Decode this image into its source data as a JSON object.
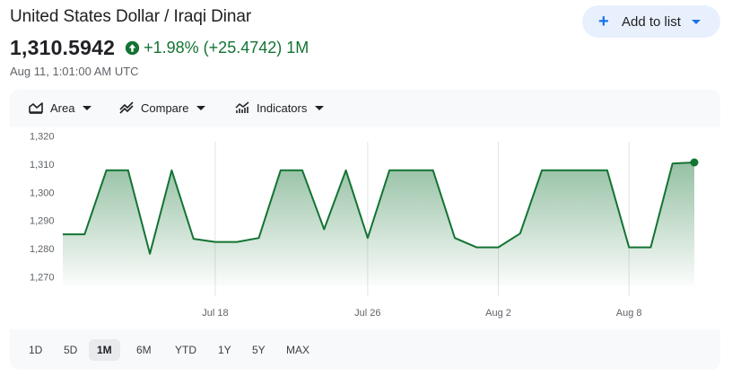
{
  "header": {
    "title": "United States Dollar / Iraqi Dinar",
    "add_button_label": "Add to list"
  },
  "quote": {
    "price": "1,310.5942",
    "change": "+1.98% (+25.4742)",
    "period": "1M",
    "timestamp": "Aug 11, 1:01:00 AM UTC",
    "change_color": "#137333"
  },
  "toolbar": {
    "area_label": "Area",
    "compare_label": "Compare",
    "indicators_label": "Indicators"
  },
  "ranges": [
    "1D",
    "5D",
    "1M",
    "6M",
    "YTD",
    "1Y",
    "5Y",
    "MAX"
  ],
  "active_range": "1M",
  "chart_data": {
    "type": "area",
    "color": "#137333",
    "ylim": [
      1267,
      1323
    ],
    "yticks": [
      1270,
      1280,
      1290,
      1300,
      1310,
      1320
    ],
    "ytick_labels": [
      "1,270",
      "1,280",
      "1,290",
      "1,300",
      "1,310",
      "1,320"
    ],
    "xticks": [
      {
        "label": "Jul 18",
        "index": 7
      },
      {
        "label": "Jul 26",
        "index": 14
      },
      {
        "label": "Aug 2",
        "index": 20
      },
      {
        "label": "Aug 8",
        "index": 26
      }
    ],
    "grid": "vertical at x ticks",
    "values": [
      1285.1,
      1285.1,
      1307.8,
      1307.8,
      1278.2,
      1307.8,
      1283.5,
      1282.4,
      1282.4,
      1283.8,
      1307.8,
      1307.8,
      1286.9,
      1307.8,
      1283.8,
      1307.8,
      1307.8,
      1307.8,
      1283.8,
      1280.5,
      1280.5,
      1285.4,
      1307.8,
      1307.8,
      1307.8,
      1307.8,
      1280.5,
      1280.5,
      1310.2,
      1310.59
    ]
  }
}
